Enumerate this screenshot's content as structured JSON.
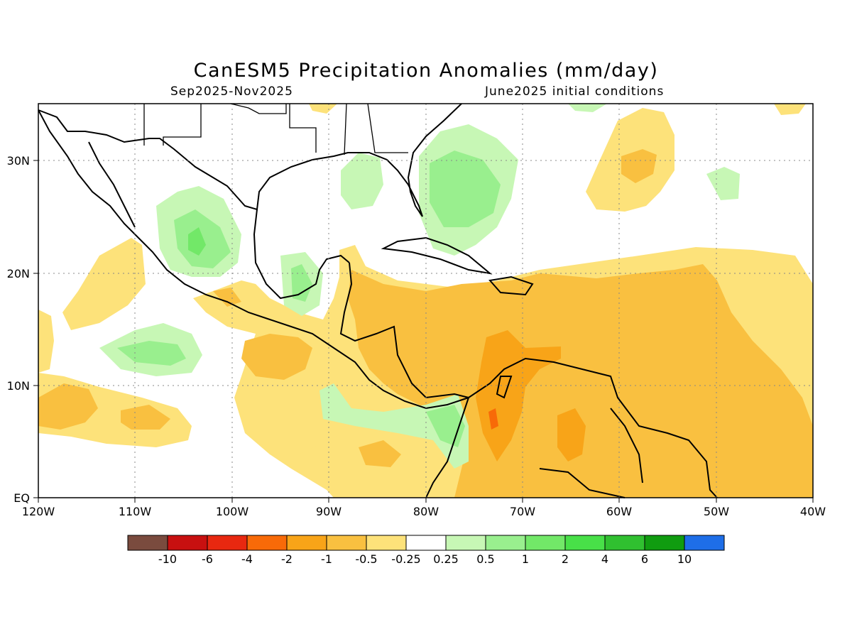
{
  "title": "CanESM5 Precipitation Anomalies (mm/day)",
  "subtitle_left": "Sep2025-Nov2025",
  "subtitle_right": "June2025 initial conditions",
  "lat_labels": [
    "EQ",
    "10N",
    "20N",
    "30N"
  ],
  "lon_labels": [
    "120W",
    "110W",
    "100W",
    "90W",
    "80W",
    "70W",
    "60W",
    "50W",
    "40W"
  ],
  "colorbar": {
    "colors": [
      "#7a4b3e",
      "#c81010",
      "#e82810",
      "#f86a08",
      "#f8a418",
      "#f9c040",
      "#fde27a",
      "#ffffff",
      "#c7f7b5",
      "#99ef8e",
      "#72e868",
      "#48e048",
      "#30c030",
      "#109c10",
      "#1e6ee8"
    ],
    "labels": [
      "-10",
      "-6",
      "-4",
      "-2",
      "-1",
      "-0.5",
      "-0.25",
      "0.25",
      "0.5",
      "1",
      "2",
      "4",
      "6",
      "10"
    ]
  }
}
